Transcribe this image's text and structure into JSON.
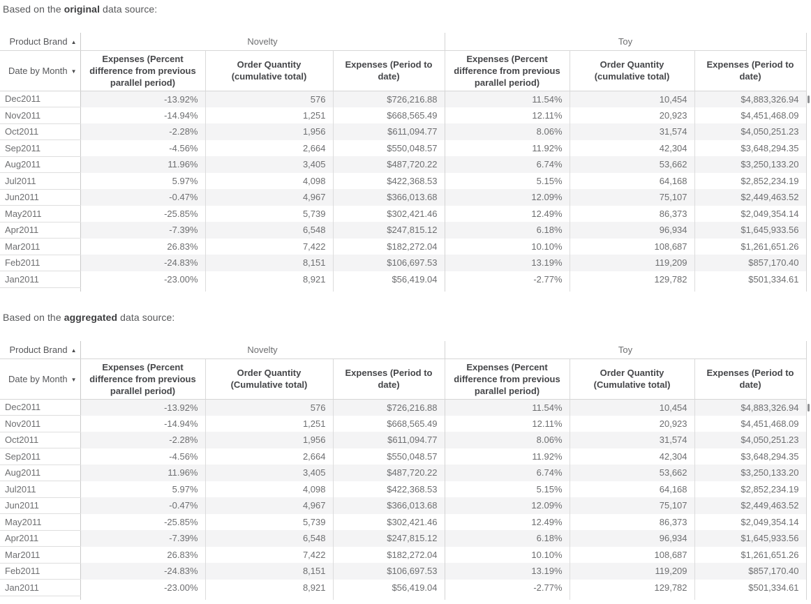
{
  "icons": {
    "sort_ascending": "▲",
    "sort_descending": "▼"
  },
  "colors": {
    "row_band": "#f4f4f5",
    "grid_line": "#d9d9d9",
    "row_header_divider": "#c9c9c9",
    "measure_header_text": "#454649",
    "cell_text": "#6d6e70",
    "heading_text": "#57585a"
  },
  "sections": [
    {
      "heading": {
        "prefix": "Based on the ",
        "emphasis": "original",
        "suffix": " data source:"
      },
      "table": {
        "column_dimension": "Product Brand",
        "row_dimension": "Date by Month",
        "groups": [
          "Novelty",
          "Toy"
        ],
        "measures": [
          "Expenses (Percent difference from previous parallel period)",
          "Order Quantity (cumulative total)",
          "Expenses (Period to date)",
          "Expenses (Percent difference from previous parallel period)",
          "Order Quantity (cumulative total)",
          "Expenses (Period to date)"
        ],
        "rows": [
          {
            "label": "Dec2011",
            "values": [
              "-13.92%",
              "576",
              "$726,216.88",
              "11.54%",
              "10,454",
              "$4,883,326.94"
            ]
          },
          {
            "label": "Nov2011",
            "values": [
              "-14.94%",
              "1,251",
              "$668,565.49",
              "12.11%",
              "20,923",
              "$4,451,468.09"
            ]
          },
          {
            "label": "Oct2011",
            "values": [
              "-2.28%",
              "1,956",
              "$611,094.77",
              "8.06%",
              "31,574",
              "$4,050,251.23"
            ]
          },
          {
            "label": "Sep2011",
            "values": [
              "-4.56%",
              "2,664",
              "$550,048.57",
              "11.92%",
              "42,304",
              "$3,648,294.35"
            ]
          },
          {
            "label": "Aug2011",
            "values": [
              "11.96%",
              "3,405",
              "$487,720.22",
              "6.74%",
              "53,662",
              "$3,250,133.20"
            ]
          },
          {
            "label": "Jul2011",
            "values": [
              "5.97%",
              "4,098",
              "$422,368.53",
              "5.15%",
              "64,168",
              "$2,852,234.19"
            ]
          },
          {
            "label": "Jun2011",
            "values": [
              "-0.47%",
              "4,967",
              "$366,013.68",
              "12.09%",
              "75,107",
              "$2,449,463.52"
            ]
          },
          {
            "label": "May2011",
            "values": [
              "-25.85%",
              "5,739",
              "$302,421.46",
              "12.49%",
              "86,373",
              "$2,049,354.14"
            ]
          },
          {
            "label": "Apr2011",
            "values": [
              "-7.39%",
              "6,548",
              "$247,815.12",
              "6.18%",
              "96,934",
              "$1,645,933.56"
            ]
          },
          {
            "label": "Mar2011",
            "values": [
              "26.83%",
              "7,422",
              "$182,272.04",
              "10.10%",
              "108,687",
              "$1,261,651.26"
            ]
          },
          {
            "label": "Feb2011",
            "values": [
              "-24.83%",
              "8,151",
              "$106,697.53",
              "13.19%",
              "119,209",
              "$857,170.40"
            ]
          },
          {
            "label": "Jan2011",
            "values": [
              "-23.00%",
              "8,921",
              "$56,419.04",
              "-2.77%",
              "129,782",
              "$501,334.61"
            ]
          }
        ]
      }
    },
    {
      "heading": {
        "prefix": "Based on the ",
        "emphasis": "aggregated",
        "suffix": " data source:"
      },
      "table": {
        "column_dimension": "Product Brand",
        "row_dimension": "Date by Month",
        "groups": [
          "Novelty",
          "Toy"
        ],
        "measures": [
          "Expenses (Percent difference from previous parallel period)",
          "Order Quantity (Cumulative total)",
          "Expenses (Period to date)",
          "Expenses (Percent difference from previous parallel period)",
          "Order Quantity (Cumulative total)",
          "Expenses (Period to date)"
        ],
        "rows": [
          {
            "label": "Dec2011",
            "values": [
              "-13.92%",
              "576",
              "$726,216.88",
              "11.54%",
              "10,454",
              "$4,883,326.94"
            ]
          },
          {
            "label": "Nov2011",
            "values": [
              "-14.94%",
              "1,251",
              "$668,565.49",
              "12.11%",
              "20,923",
              "$4,451,468.09"
            ]
          },
          {
            "label": "Oct2011",
            "values": [
              "-2.28%",
              "1,956",
              "$611,094.77",
              "8.06%",
              "31,574",
              "$4,050,251.23"
            ]
          },
          {
            "label": "Sep2011",
            "values": [
              "-4.56%",
              "2,664",
              "$550,048.57",
              "11.92%",
              "42,304",
              "$3,648,294.35"
            ]
          },
          {
            "label": "Aug2011",
            "values": [
              "11.96%",
              "3,405",
              "$487,720.22",
              "6.74%",
              "53,662",
              "$3,250,133.20"
            ]
          },
          {
            "label": "Jul2011",
            "values": [
              "5.97%",
              "4,098",
              "$422,368.53",
              "5.15%",
              "64,168",
              "$2,852,234.19"
            ]
          },
          {
            "label": "Jun2011",
            "values": [
              "-0.47%",
              "4,967",
              "$366,013.68",
              "12.09%",
              "75,107",
              "$2,449,463.52"
            ]
          },
          {
            "label": "May2011",
            "values": [
              "-25.85%",
              "5,739",
              "$302,421.46",
              "12.49%",
              "86,373",
              "$2,049,354.14"
            ]
          },
          {
            "label": "Apr2011",
            "values": [
              "-7.39%",
              "6,548",
              "$247,815.12",
              "6.18%",
              "96,934",
              "$1,645,933.56"
            ]
          },
          {
            "label": "Mar2011",
            "values": [
              "26.83%",
              "7,422",
              "$182,272.04",
              "10.10%",
              "108,687",
              "$1,261,651.26"
            ]
          },
          {
            "label": "Feb2011",
            "values": [
              "-24.83%",
              "8,151",
              "$106,697.53",
              "13.19%",
              "119,209",
              "$857,170.40"
            ]
          },
          {
            "label": "Jan2011",
            "values": [
              "-23.00%",
              "8,921",
              "$56,419.04",
              "-2.77%",
              "129,782",
              "$501,334.61"
            ]
          }
        ]
      }
    }
  ]
}
